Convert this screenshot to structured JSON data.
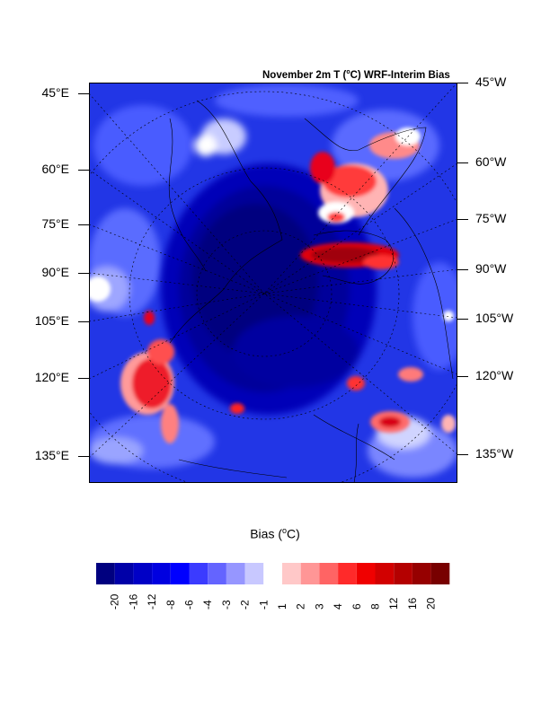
{
  "title_prefix": "November 2m T (",
  "title_unit": "o",
  "title_suffix": "C) WRF-Interim Bias",
  "left_labels": [
    "45°E",
    "60°E",
    "75°E",
    "90°E",
    "105°E",
    "120°E",
    "135°E"
  ],
  "right_labels": [
    "45°W",
    "60°W",
    "75°W",
    "90°W",
    "105°W",
    "120°W",
    "135°W"
  ],
  "colorbar": {
    "title_prefix": "Bias (",
    "title_unit": "o",
    "title_suffix": "C)",
    "labels": [
      "-20",
      "-16",
      "-12",
      "-8",
      "-6",
      "-4",
      "-3",
      "-2",
      "-1",
      "1",
      "2",
      "3",
      "4",
      "6",
      "8",
      "12",
      "16",
      "20"
    ],
    "colors": [
      "#00007f",
      "#0000a8",
      "#0000c6",
      "#0000e0",
      "#0000ff",
      "#3b3bff",
      "#6464ff",
      "#9696ff",
      "#c8c8ff",
      "#ffffff",
      "#ffc8c8",
      "#ff9696",
      "#ff6464",
      "#ff2a2a",
      "#f00000",
      "#d20000",
      "#b40000",
      "#960000",
      "#780000"
    ]
  },
  "colors": {
    "background_blue": "#1c2bdc",
    "deep_blue": "#00007f",
    "red": "#e8192c",
    "dark_red": "#a8000a"
  }
}
